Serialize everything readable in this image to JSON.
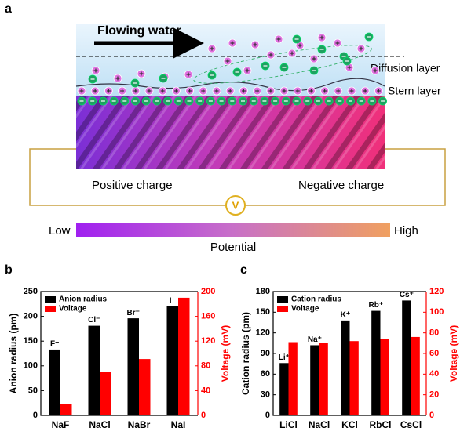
{
  "panel_a": {
    "label": "a",
    "flow": "Flowing water",
    "diffusion": "Diffusion layer",
    "stern": "Stern layer",
    "positive": "Positive charge",
    "negative": "Negative charge",
    "meter": "V",
    "low": "Low",
    "high": "High",
    "potential": "Potential"
  },
  "chart_data": [
    {
      "type": "bar",
      "panel": "b",
      "categories": [
        "NaF",
        "NaCl",
        "NaBr",
        "NaI"
      ],
      "bar_labels": [
        "F⁻",
        "Cl⁻",
        "Br⁻",
        "I⁻"
      ],
      "ylabel": "Anion radius (pm)",
      "y2label": "Voltage (mV)",
      "ylim": [
        0,
        250
      ],
      "yticks": [
        0,
        50,
        100,
        150,
        200,
        250
      ],
      "y2lim": [
        0,
        200
      ],
      "y2ticks": [
        0,
        40,
        80,
        120,
        160,
        200
      ],
      "legend": "upper left",
      "series": [
        {
          "name": "Anion radius",
          "color": "#000000",
          "values": [
            133,
            181,
            196,
            220
          ]
        },
        {
          "name": "Voltage",
          "color": "#ff0000",
          "axis": "y2",
          "values": [
            18,
            70,
            91,
            190
          ]
        }
      ]
    },
    {
      "type": "bar",
      "panel": "c",
      "categories": [
        "LiCl",
        "NaCl",
        "KCl",
        "RbCl",
        "CsCl"
      ],
      "bar_labels": [
        "Li⁺",
        "Na⁺",
        "K⁺",
        "Rb⁺",
        "Cs⁺"
      ],
      "ylabel": "Cation radius (pm)",
      "y2label": "Voltage (mV)",
      "ylim": [
        0,
        180
      ],
      "yticks": [
        0,
        30,
        60,
        90,
        120,
        150,
        180
      ],
      "y2lim": [
        0,
        120
      ],
      "y2ticks": [
        0,
        20,
        40,
        60,
        80,
        100,
        120
      ],
      "legend": "upper left",
      "series": [
        {
          "name": "Cation radius",
          "color": "#000000",
          "values": [
            76,
            102,
            138,
            152,
            167
          ]
        },
        {
          "name": "Voltage",
          "color": "#ff0000",
          "axis": "y2",
          "values": [
            71,
            70,
            72,
            74,
            76
          ]
        }
      ]
    }
  ]
}
